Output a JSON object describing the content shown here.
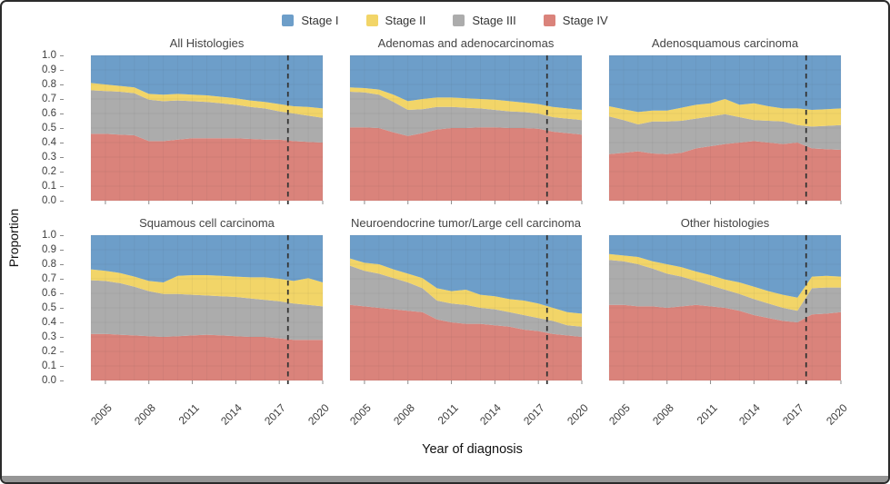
{
  "legend": {
    "items": [
      {
        "label": "Stage I",
        "color": "#6D9EC9"
      },
      {
        "label": "Stage II",
        "color": "#F2D568"
      },
      {
        "label": "Stage III",
        "color": "#ACACAC"
      },
      {
        "label": "Stage IV",
        "color": "#DA837B"
      }
    ]
  },
  "chart_data": {
    "type": "area",
    "stacked": true,
    "xlabel": "Year of diagnosis",
    "ylabel": "Proportion",
    "x": [
      2004,
      2005,
      2006,
      2007,
      2008,
      2009,
      2010,
      2011,
      2012,
      2013,
      2014,
      2015,
      2016,
      2017,
      2018,
      2019,
      2020
    ],
    "xticks": [
      2005,
      2008,
      2011,
      2014,
      2017,
      2020
    ],
    "ytick_labels": [
      "1.0",
      "0.9",
      "0.8",
      "0.7",
      "0.6",
      "0.5",
      "0.4",
      "0.3",
      "0.2",
      "0.1",
      "0.0"
    ],
    "ylim": [
      0,
      1
    ],
    "grid": true,
    "legend_position": "top",
    "reference_line_x": 2017.6,
    "series_order_bottom_to_top": [
      "Stage IV",
      "Stage III",
      "Stage II",
      "Stage I"
    ],
    "colors": {
      "Stage I": "#6D9EC9",
      "Stage II": "#F2D568",
      "Stage III": "#ACACAC",
      "Stage IV": "#DA837B",
      "reference_line": "#333333"
    },
    "note": "cumulative_tops are stacked upper boundaries read from the y axis: stage_iv = Stage IV proportion; stage_iv_iii = IV+III; stage_iv_iii_ii = IV+III+II; Stage I fills to 1.0",
    "panels": [
      {
        "title": "All Histologies",
        "cumulative_tops": {
          "stage_iv": [
            0.46,
            0.46,
            0.455,
            0.45,
            0.41,
            0.41,
            0.42,
            0.43,
            0.43,
            0.43,
            0.43,
            0.425,
            0.42,
            0.42,
            0.41,
            0.405,
            0.4
          ],
          "stage_iv_iii": [
            0.76,
            0.755,
            0.75,
            0.74,
            0.695,
            0.685,
            0.69,
            0.685,
            0.68,
            0.67,
            0.66,
            0.645,
            0.635,
            0.615,
            0.6,
            0.585,
            0.57
          ],
          "stage_iv_iii_ii": [
            0.81,
            0.8,
            0.79,
            0.78,
            0.735,
            0.73,
            0.735,
            0.73,
            0.725,
            0.715,
            0.705,
            0.69,
            0.68,
            0.665,
            0.65,
            0.645,
            0.635
          ]
        }
      },
      {
        "title": "Adenomas and adenocarcinomas",
        "cumulative_tops": {
          "stage_iv": [
            0.505,
            0.505,
            0.5,
            0.47,
            0.445,
            0.465,
            0.49,
            0.5,
            0.5,
            0.505,
            0.505,
            0.5,
            0.5,
            0.495,
            0.475,
            0.465,
            0.455
          ],
          "stage_iv_iii": [
            0.75,
            0.745,
            0.73,
            0.68,
            0.625,
            0.63,
            0.645,
            0.645,
            0.64,
            0.635,
            0.625,
            0.615,
            0.61,
            0.6,
            0.575,
            0.565,
            0.555
          ],
          "stage_iv_iii_ii": [
            0.78,
            0.775,
            0.765,
            0.73,
            0.685,
            0.7,
            0.71,
            0.71,
            0.705,
            0.7,
            0.695,
            0.685,
            0.675,
            0.665,
            0.645,
            0.635,
            0.625
          ]
        }
      },
      {
        "title": "Adenosquamous carcinoma",
        "cumulative_tops": {
          "stage_iv": [
            0.32,
            0.33,
            0.34,
            0.325,
            0.32,
            0.33,
            0.36,
            0.375,
            0.39,
            0.4,
            0.41,
            0.4,
            0.39,
            0.4,
            0.36,
            0.355,
            0.35
          ],
          "stage_iv_iii": [
            0.58,
            0.555,
            0.525,
            0.545,
            0.545,
            0.55,
            0.565,
            0.58,
            0.595,
            0.575,
            0.555,
            0.55,
            0.545,
            0.52,
            0.51,
            0.515,
            0.52
          ],
          "stage_iv_iii_ii": [
            0.65,
            0.63,
            0.61,
            0.62,
            0.62,
            0.64,
            0.66,
            0.67,
            0.7,
            0.66,
            0.67,
            0.65,
            0.635,
            0.635,
            0.625,
            0.63,
            0.635
          ]
        }
      },
      {
        "title": "Squamous cell carcinoma",
        "cumulative_tops": {
          "stage_iv": [
            0.32,
            0.32,
            0.315,
            0.31,
            0.305,
            0.3,
            0.305,
            0.31,
            0.315,
            0.31,
            0.305,
            0.3,
            0.3,
            0.29,
            0.28,
            0.28,
            0.28
          ],
          "stage_iv_iii": [
            0.69,
            0.685,
            0.67,
            0.645,
            0.615,
            0.595,
            0.595,
            0.59,
            0.585,
            0.58,
            0.575,
            0.565,
            0.555,
            0.545,
            0.53,
            0.52,
            0.51
          ],
          "stage_iv_iii_ii": [
            0.765,
            0.755,
            0.74,
            0.715,
            0.685,
            0.675,
            0.72,
            0.725,
            0.725,
            0.72,
            0.715,
            0.71,
            0.71,
            0.7,
            0.685,
            0.705,
            0.675
          ]
        }
      },
      {
        "title": "Neuroendocrine tumor/Large cell carcinoma",
        "cumulative_tops": {
          "stage_iv": [
            0.52,
            0.51,
            0.5,
            0.49,
            0.48,
            0.47,
            0.42,
            0.4,
            0.39,
            0.39,
            0.38,
            0.37,
            0.35,
            0.34,
            0.32,
            0.31,
            0.3
          ],
          "stage_iv_iii": [
            0.79,
            0.755,
            0.735,
            0.705,
            0.675,
            0.635,
            0.55,
            0.53,
            0.52,
            0.5,
            0.49,
            0.47,
            0.45,
            0.43,
            0.41,
            0.38,
            0.37
          ],
          "stage_iv_iii_ii": [
            0.84,
            0.81,
            0.8,
            0.765,
            0.735,
            0.705,
            0.635,
            0.615,
            0.625,
            0.59,
            0.58,
            0.56,
            0.55,
            0.53,
            0.5,
            0.47,
            0.46
          ]
        }
      },
      {
        "title": "Other histologies",
        "cumulative_tops": {
          "stage_iv": [
            0.52,
            0.52,
            0.51,
            0.51,
            0.5,
            0.51,
            0.52,
            0.51,
            0.5,
            0.48,
            0.45,
            0.43,
            0.41,
            0.4,
            0.455,
            0.46,
            0.47
          ],
          "stage_iv_iii": [
            0.83,
            0.82,
            0.8,
            0.77,
            0.735,
            0.715,
            0.685,
            0.655,
            0.625,
            0.595,
            0.56,
            0.53,
            0.5,
            0.48,
            0.635,
            0.64,
            0.64
          ],
          "stage_iv_iii_ii": [
            0.87,
            0.86,
            0.85,
            0.82,
            0.8,
            0.78,
            0.75,
            0.725,
            0.695,
            0.675,
            0.645,
            0.615,
            0.59,
            0.57,
            0.715,
            0.72,
            0.715
          ]
        }
      }
    ]
  }
}
